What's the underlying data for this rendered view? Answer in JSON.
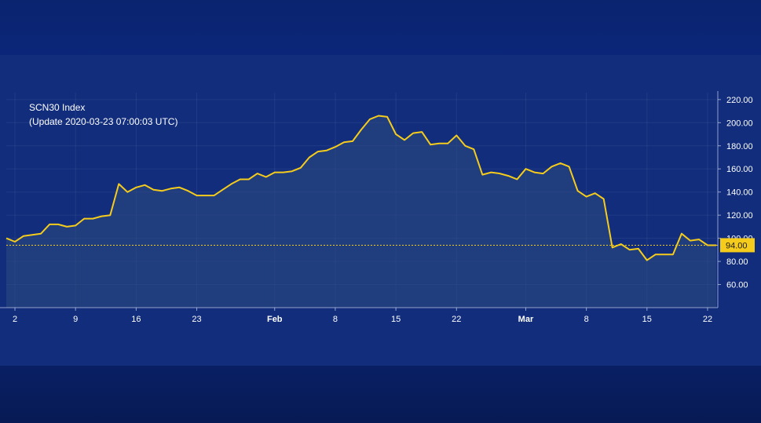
{
  "chart_data": {
    "type": "area",
    "title": "SCN30 Index",
    "subtitle": "(Update 2020-03-23 07:00:03 UTC)",
    "ylim": [
      40,
      226
    ],
    "y_ticks": [
      "60.00",
      "80.00",
      "100.00",
      "120.00",
      "140.00",
      "160.00",
      "180.00",
      "200.00",
      "220.00"
    ],
    "y_tick_values": [
      60,
      80,
      100,
      120,
      140,
      160,
      180,
      200,
      220
    ],
    "x_ticks": [
      "2",
      "9",
      "16",
      "23",
      "Feb",
      "8",
      "15",
      "22",
      "Mar",
      "8",
      "15",
      "22"
    ],
    "x_tick_days": [
      1,
      8,
      15,
      22,
      31,
      38,
      45,
      52,
      60,
      67,
      74,
      81
    ],
    "x_range_days": [
      0,
      82
    ],
    "x_axis_start_date": "2020-01-01",
    "current_value": 94.0,
    "current_label": "94.00",
    "grid": true,
    "line_color": "#f5cc1c",
    "x": [
      0,
      1,
      2,
      3,
      4,
      5,
      6,
      7,
      8,
      9,
      10,
      11,
      12,
      13,
      14,
      15,
      16,
      17,
      18,
      19,
      20,
      21,
      22,
      23,
      24,
      25,
      26,
      27,
      28,
      29,
      30,
      31,
      32,
      33,
      34,
      35,
      36,
      37,
      38,
      39,
      40,
      41,
      42,
      43,
      44,
      45,
      46,
      47,
      48,
      49,
      50,
      51,
      52,
      53,
      54,
      55,
      56,
      57,
      58,
      59,
      60,
      61,
      62,
      63,
      64,
      65,
      66,
      67,
      68,
      69,
      70,
      71,
      72,
      73,
      74,
      75,
      76,
      77,
      78,
      79,
      80,
      81,
      82
    ],
    "values": [
      100,
      97,
      102,
      103,
      104,
      112,
      112,
      110,
      111,
      117,
      117,
      119,
      120,
      147,
      140,
      144,
      146,
      142,
      141,
      143,
      144,
      141,
      137,
      137,
      137,
      142,
      147,
      151,
      151,
      156,
      153,
      157,
      157,
      158,
      161,
      170,
      175,
      176,
      179,
      183,
      184,
      194,
      203,
      206,
      205,
      190,
      185,
      191,
      192,
      181,
      182,
      182,
      189,
      180,
      177,
      155,
      157,
      156,
      154,
      151,
      160,
      157,
      156,
      162,
      165,
      162,
      141,
      136,
      139,
      134,
      92,
      95,
      90,
      91,
      81,
      86,
      86,
      86,
      104,
      98,
      99,
      94,
      94
    ]
  }
}
